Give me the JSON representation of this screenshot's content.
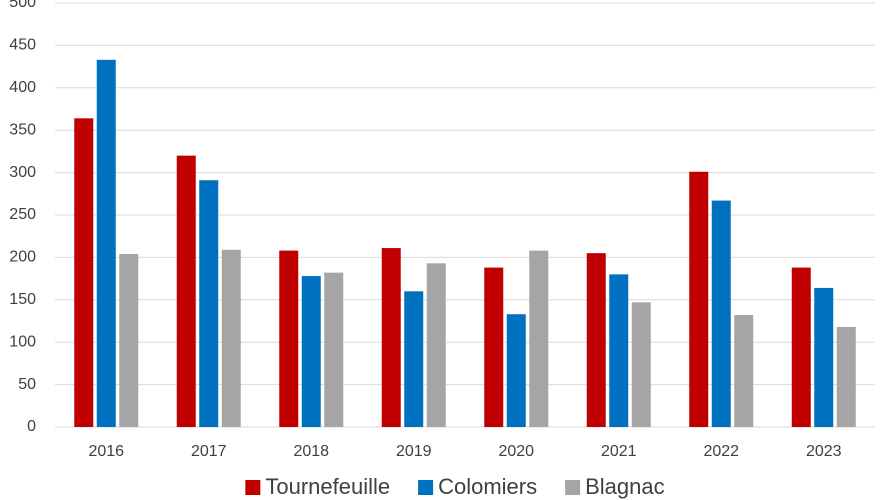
{
  "chart_data": {
    "type": "bar",
    "categories": [
      "2016",
      "2017",
      "2018",
      "2019",
      "2020",
      "2021",
      "2022",
      "2023"
    ],
    "series": [
      {
        "name": "Tournefeuille",
        "color": "#c00000",
        "values": [
          364,
          320,
          208,
          211,
          188,
          205,
          301,
          188
        ]
      },
      {
        "name": "Colomiers",
        "color": "#0070c0",
        "values": [
          433,
          291,
          178,
          160,
          133,
          180,
          267,
          164
        ]
      },
      {
        "name": "Blagnac",
        "color": "#a5a5a5",
        "values": [
          204,
          209,
          182,
          193,
          208,
          147,
          132,
          118
        ]
      }
    ],
    "ylim": [
      0,
      500
    ],
    "yticks": [
      0,
      50,
      100,
      150,
      200,
      250,
      300,
      350,
      400,
      450,
      500
    ],
    "grid": true,
    "legend": "bottom"
  }
}
